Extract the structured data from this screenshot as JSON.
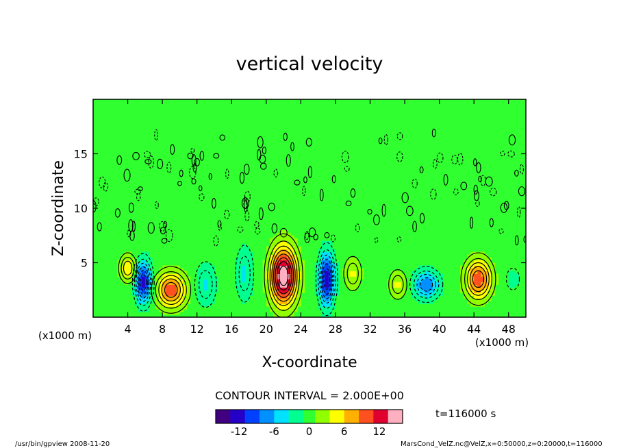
{
  "chart_data": {
    "type": "heatmap",
    "title": "vertical velocity",
    "xlabel": "X-coordinate",
    "ylabel": "Z-coordinate",
    "x_unit": "(x1000 m)",
    "x_unit_right": "(x1000 m)",
    "xlim": [
      0,
      50
    ],
    "ylim": [
      0,
      20
    ],
    "x_ticks": [
      4,
      8,
      12,
      16,
      20,
      24,
      28,
      32,
      36,
      40,
      44,
      48
    ],
    "y_ticks": [
      5,
      10,
      15
    ],
    "contour_interval_text": "CONTOUR INTERVAL = 2.000E+00",
    "colorbar": {
      "min": -16,
      "max": 16,
      "tick_labels": [
        "-12",
        "-6",
        "0",
        "6",
        "12"
      ],
      "tick_values": [
        -12,
        -6,
        0,
        6,
        12
      ]
    },
    "features": [
      {
        "x": 4.0,
        "z": 4.5,
        "value": 6,
        "sx": 0.9,
        "sz": 1.2
      },
      {
        "x": 5.8,
        "z": 3.2,
        "value": -12,
        "sx": 0.9,
        "sz": 1.9
      },
      {
        "x": 9.0,
        "z": 2.5,
        "value": 10,
        "sx": 1.7,
        "sz": 1.6
      },
      {
        "x": 13.0,
        "z": 3.0,
        "value": -4,
        "sx": 1.2,
        "sz": 2.0
      },
      {
        "x": 17.5,
        "z": 4.0,
        "value": -4,
        "sx": 1.0,
        "sz": 2.5
      },
      {
        "x": 22.0,
        "z": 3.8,
        "value": 16,
        "sx": 1.5,
        "sz": 2.6
      },
      {
        "x": 27.0,
        "z": 3.5,
        "value": -12,
        "sx": 0.9,
        "sz": 2.4
      },
      {
        "x": 30.0,
        "z": 4.0,
        "value": 4,
        "sx": 1.0,
        "sz": 1.5
      },
      {
        "x": 35.2,
        "z": 3.0,
        "value": 4,
        "sx": 1.0,
        "sz": 1.3
      },
      {
        "x": 38.5,
        "z": 3.0,
        "value": -8,
        "sx": 1.5,
        "sz": 1.3
      },
      {
        "x": 44.5,
        "z": 3.5,
        "value": 10,
        "sx": 1.5,
        "sz": 1.8
      },
      {
        "x": 48.5,
        "z": 3.5,
        "value": -2,
        "sx": 0.9,
        "sz": 1.2
      }
    ]
  },
  "annotations": {
    "time_label": "t=116000  s",
    "program_label": "/usr/bin/gpview   2008-11-20",
    "file_label": "MarsCond_VelZ.nc@VelZ,x=0:50000,z=0:20000,t=116000"
  },
  "colors": {
    "palette": [
      "#40007f",
      "#2400c8",
      "#0040ff",
      "#0090ff",
      "#00e0ff",
      "#00ff90",
      "#30ff30",
      "#90ff00",
      "#ffff00",
      "#ffb000",
      "#ff5020",
      "#e00030",
      "#ffb0c0"
    ]
  }
}
